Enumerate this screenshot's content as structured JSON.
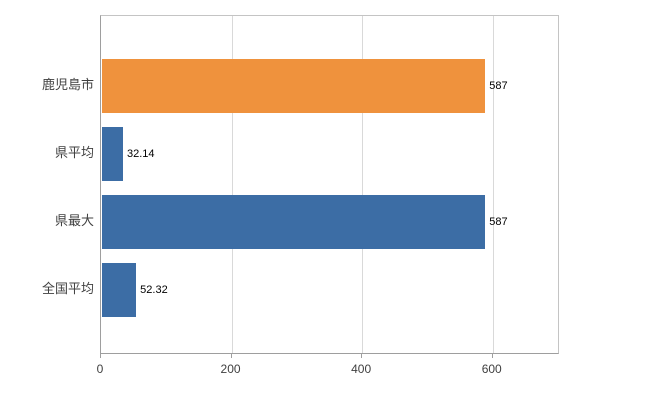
{
  "chart_data": {
    "type": "bar",
    "orientation": "horizontal",
    "title": "",
    "categories": [
      "鹿児島市",
      "県平均",
      "県最大",
      "全国平均"
    ],
    "values": [
      587,
      32.14,
      587,
      52.32
    ],
    "value_labels": [
      "587",
      "32.14",
      "587",
      "52.32"
    ],
    "series_colors": [
      "#ef923d",
      "#3c6da5",
      "#3c6da5",
      "#3c6da5"
    ],
    "xlim": [
      0,
      700
    ],
    "x_ticks": [
      0,
      200,
      400,
      600
    ],
    "x_tick_labels": [
      "0",
      "200",
      "400",
      "600"
    ],
    "grid": "vertical",
    "legend": "none",
    "axis_color": "#9e9e9e",
    "grid_color": "#d9d9d9",
    "background_color": "#ffffff"
  }
}
